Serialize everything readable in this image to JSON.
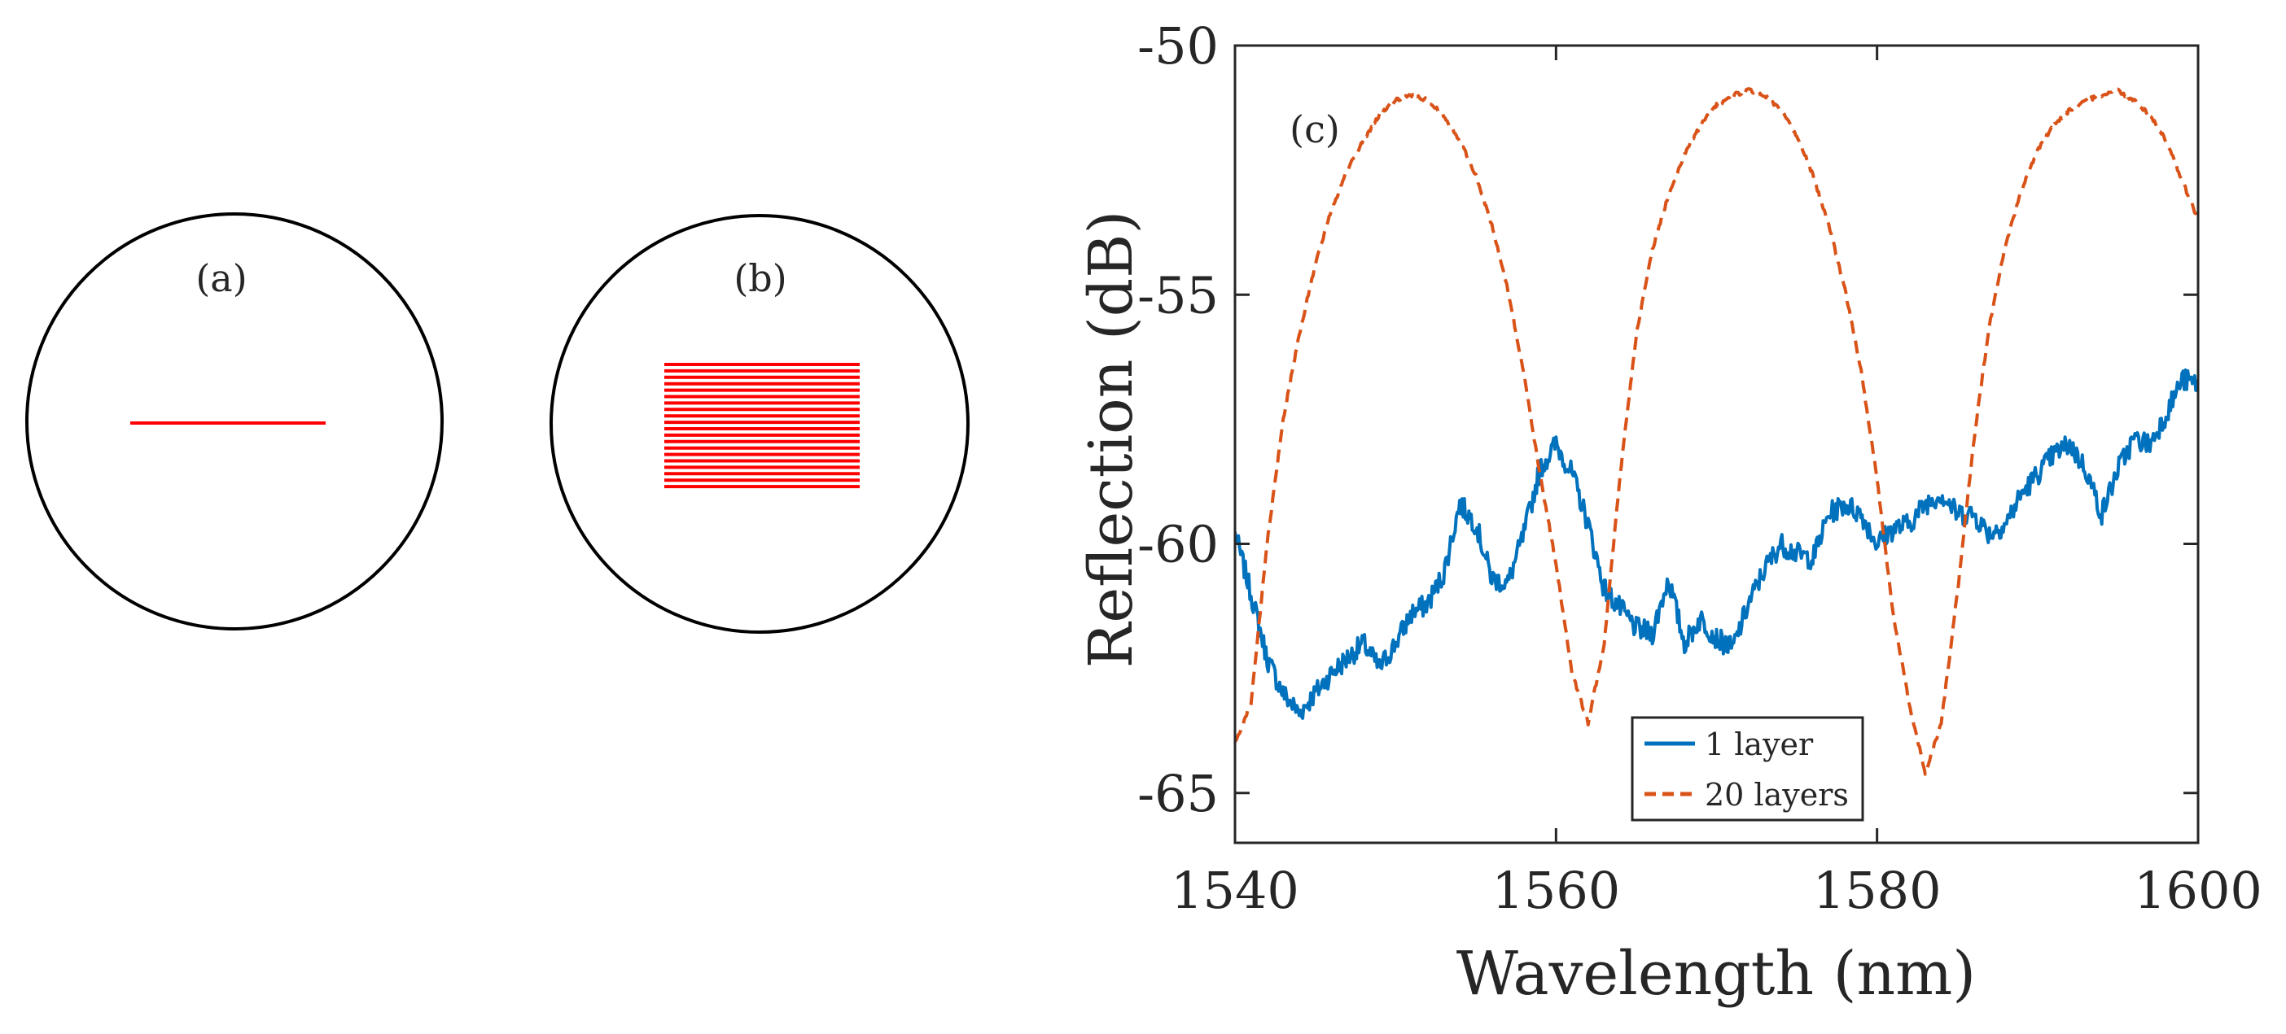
{
  "panels": {
    "a": {
      "label": "(a)",
      "layer_count": 1,
      "line_color": "#ff0000"
    },
    "b": {
      "label": "(b)",
      "layer_count": 20,
      "line_color": "#ff0000"
    }
  },
  "chart_data": {
    "type": "line",
    "panel_label": "(c)",
    "title": "",
    "xlabel": "Wavelength (nm)",
    "ylabel": "Reflection (dB)",
    "xlim": [
      1540,
      1600
    ],
    "ylim": [
      -66,
      -50
    ],
    "xticks": [
      1540,
      1560,
      1580,
      1600
    ],
    "xtick_labels": [
      "1540",
      "1560",
      "1580",
      "1600"
    ],
    "yticks": [
      -50,
      -55,
      -60,
      -65
    ],
    "ytick_labels": [
      "-50",
      "-55",
      "-60",
      "-65"
    ],
    "grid": false,
    "legend_position": "bottom-center",
    "series": [
      {
        "name": "1 layer",
        "color": "#0072bd",
        "style": "solid",
        "x": [
          1540,
          1541,
          1542,
          1543,
          1544,
          1545,
          1546,
          1547,
          1548,
          1549,
          1550,
          1551,
          1552,
          1553,
          1554,
          1555,
          1556,
          1557,
          1558,
          1559,
          1560,
          1561,
          1562,
          1563,
          1564,
          1565,
          1566,
          1567,
          1568,
          1569,
          1570,
          1571,
          1572,
          1573,
          1574,
          1575,
          1576,
          1577,
          1578,
          1579,
          1580,
          1581,
          1582,
          1583,
          1584,
          1585,
          1586,
          1587,
          1588,
          1589,
          1590,
          1591,
          1592,
          1593,
          1594,
          1595,
          1596,
          1597,
          1598,
          1599,
          1600
        ],
        "y": [
          -59.8,
          -61.0,
          -62.3,
          -63.0,
          -63.4,
          -63.0,
          -62.6,
          -62.3,
          -62.0,
          -62.5,
          -62.0,
          -61.4,
          -61.2,
          -60.6,
          -59.2,
          -59.6,
          -60.7,
          -60.8,
          -59.8,
          -58.5,
          -58.0,
          -58.6,
          -59.6,
          -60.9,
          -61.3,
          -61.7,
          -61.8,
          -60.7,
          -62.0,
          -61.5,
          -61.9,
          -62.1,
          -61.2,
          -60.5,
          -60.0,
          -60.2,
          -60.3,
          -59.4,
          -59.2,
          -59.4,
          -60.0,
          -59.7,
          -59.6,
          -59.2,
          -59.0,
          -59.4,
          -59.4,
          -59.8,
          -59.6,
          -59.0,
          -58.6,
          -58.2,
          -58.0,
          -58.5,
          -59.4,
          -58.5,
          -57.9,
          -58.0,
          -57.4,
          -56.7,
          -56.8
        ]
      },
      {
        "name": "20 layers",
        "color": "#d95319",
        "style": "dashed",
        "x": [
          1540,
          1541,
          1542,
          1543,
          1544,
          1545,
          1546,
          1547,
          1548,
          1549,
          1550,
          1551,
          1552,
          1553,
          1554,
          1555,
          1556,
          1557,
          1558,
          1559,
          1560,
          1561,
          1562,
          1563,
          1564,
          1565,
          1566,
          1567,
          1568,
          1569,
          1570,
          1571,
          1572,
          1573,
          1574,
          1575,
          1576,
          1577,
          1578,
          1579,
          1580,
          1581,
          1582,
          1583,
          1584,
          1585,
          1586,
          1587,
          1588,
          1589,
          1590,
          1591,
          1592,
          1593,
          1594,
          1595,
          1596,
          1597,
          1598,
          1599,
          1600
        ],
        "y": [
          -64.0,
          -63.2,
          -60.0,
          -57.5,
          -55.8,
          -54.4,
          -53.3,
          -52.5,
          -51.9,
          -51.4,
          -51.1,
          -51.0,
          -51.1,
          -51.4,
          -51.9,
          -52.6,
          -53.6,
          -54.9,
          -56.6,
          -58.6,
          -60.4,
          -62.6,
          -63.6,
          -62.0,
          -58.6,
          -55.8,
          -54.1,
          -53.0,
          -52.2,
          -51.6,
          -51.2,
          -51.0,
          -50.9,
          -51.0,
          -51.3,
          -51.8,
          -52.6,
          -53.6,
          -54.9,
          -56.5,
          -58.7,
          -61.4,
          -63.2,
          -64.6,
          -63.6,
          -61.0,
          -58.0,
          -55.6,
          -54.0,
          -52.9,
          -52.1,
          -51.6,
          -51.3,
          -51.1,
          -51.0,
          -50.9,
          -51.1,
          -51.4,
          -51.9,
          -52.7,
          -53.5
        ]
      }
    ]
  }
}
